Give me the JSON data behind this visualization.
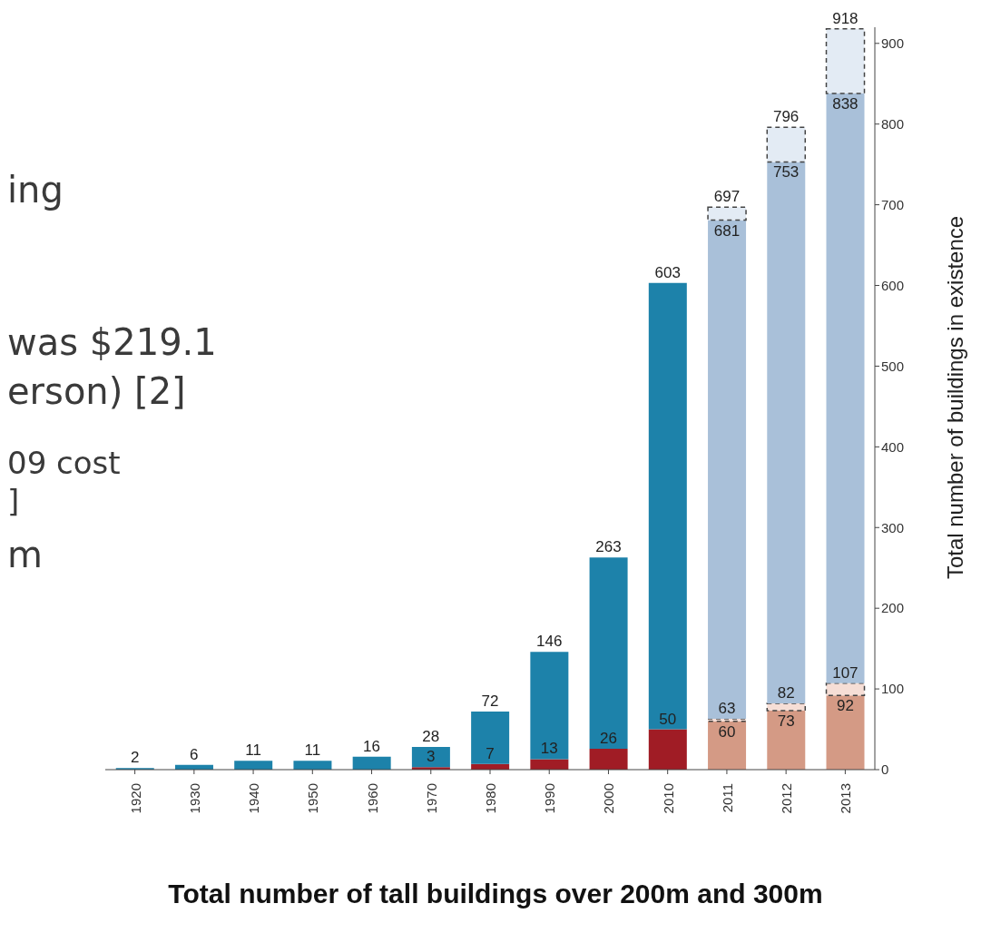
{
  "chart_data": {
    "type": "bar",
    "stacked": true,
    "title": "Total number of tall buildings over 200m and 300m",
    "ylabel": "Total number of buildings in existence",
    "annotations": [
      "ing",
      "was $219.1",
      "erson) [2]",
      "09 cost",
      "]",
      "m",
      {
        "text": "2",
        "x": "1920",
        "y": 2
      },
      {
        "text": "6",
        "x": "1930",
        "y": 6
      },
      {
        "text": "11",
        "x": "1940",
        "y": 11
      },
      {
        "text": "11",
        "x": "1950",
        "y": 11
      },
      {
        "text": "16",
        "x": "1960",
        "y": 16
      },
      {
        "text": "28",
        "x": "1970",
        "y": 28
      },
      {
        "text": "3",
        "x": "1970",
        "y": 3
      },
      {
        "text": "72",
        "x": "1980",
        "y": 72
      },
      {
        "text": "7",
        "x": "1980",
        "y": 7
      },
      {
        "text": "146",
        "x": "1990",
        "y": 146
      },
      {
        "text": "13",
        "x": "1990",
        "y": 13
      },
      {
        "text": "263",
        "x": "2000",
        "y": 263
      },
      {
        "text": "26",
        "x": "2000",
        "y": 26
      },
      {
        "text": "603",
        "x": "2010",
        "y": 603
      },
      {
        "text": "50",
        "x": "2010",
        "y": 50
      },
      {
        "text": "697",
        "x": "2011",
        "y": 697
      },
      {
        "text": "681",
        "x": "2011",
        "y": 681
      },
      {
        "text": "63",
        "x": "2011",
        "y": 63
      },
      {
        "text": "60",
        "x": "2011",
        "y": 60
      },
      {
        "text": "796",
        "x": "2012",
        "y": 796
      },
      {
        "text": "753",
        "x": "2012",
        "y": 753
      },
      {
        "text": "82",
        "x": "2012",
        "y": 82
      },
      {
        "text": "73",
        "x": "2012",
        "y": 73
      },
      {
        "text": "918",
        "x": "2013",
        "y": 918
      },
      {
        "text": "838",
        "x": "2013",
        "y": 838
      },
      {
        "text": "107",
        "x": "2013",
        "y": 107
      },
      {
        "text": "92",
        "x": "2013",
        "y": 92
      }
    ],
    "categories": [
      "1920",
      "1930",
      "1940",
      "1950",
      "1960",
      "1970",
      "1980",
      "1990",
      "2000",
      "2010",
      "2011",
      "2012",
      "2013"
    ],
    "series": [
      {
        "color": "#a01c25",
        "colors": [
          "#a01c25",
          "#a01c25",
          "#a01c25",
          "#a01c25",
          "#a01c25",
          "#a01c25",
          "#a01c25",
          "#a01c25",
          "#a01c25",
          "#a01c25",
          "#d49a85",
          "#d49a85",
          "#d49a85"
        ],
        "values": [
          null,
          null,
          null,
          null,
          null,
          3,
          7,
          13,
          26,
          50,
          60,
          73,
          92
        ]
      },
      {
        "color": "#f6ded6",
        "line_style": "dashed",
        "values": [
          null,
          null,
          null,
          null,
          null,
          null,
          null,
          null,
          null,
          null,
          3,
          9,
          15
        ]
      },
      {
        "color": "#1d82aa",
        "colors": [
          "#1d82aa",
          "#1d82aa",
          "#1d82aa",
          "#1d82aa",
          "#1d82aa",
          "#1d82aa",
          "#1d82aa",
          "#1d82aa",
          "#1d82aa",
          "#1d82aa",
          "#a9c0d9",
          "#a9c0d9",
          "#a9c0d9"
        ],
        "values": [
          2,
          6,
          11,
          11,
          16,
          25,
          65,
          133,
          237,
          553,
          618,
          671,
          731
        ]
      },
      {
        "color": "#e3ebf4",
        "line_style": "dashed",
        "values": [
          null,
          null,
          null,
          null,
          null,
          null,
          null,
          null,
          null,
          null,
          16,
          43,
          80
        ]
      }
    ],
    "ylim": [
      0,
      920
    ],
    "yticks": [
      0,
      100,
      200,
      300,
      400,
      500,
      600,
      700,
      800,
      900
    ]
  }
}
